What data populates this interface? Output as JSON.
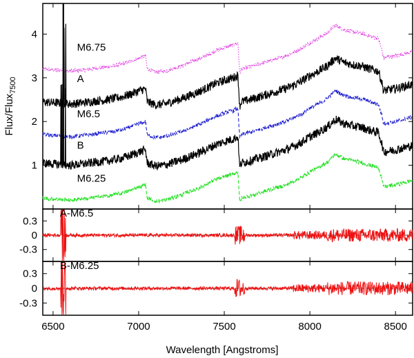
{
  "chart_data": {
    "type": "line",
    "xlabel": "Wavelength [Angstroms]",
    "ylabel": "Flux/Flux",
    "ylabel_subscript": "7500",
    "xlim": [
      6440,
      8600
    ],
    "x_ticks": [
      "6500",
      "7000",
      "7500",
      "8000",
      "8500"
    ],
    "x_tick_values": [
      6500,
      7000,
      7500,
      8000,
      8500
    ],
    "colors": {
      "magenta": "#e040e0",
      "black": "#000000",
      "blue": "#2020d0",
      "green": "#20e020",
      "red": "#ee1111"
    },
    "panels": [
      {
        "name": "main",
        "ylim": [
          0,
          4.7
        ],
        "y_ticks": [
          "1",
          "2",
          "3",
          "4"
        ],
        "y_tick_values": [
          1,
          2,
          3,
          4
        ],
        "series": [
          {
            "name": "M6.75",
            "label": "M6.75",
            "style": "dotted",
            "color": "#e040e0",
            "offset": 2.25,
            "label_at": [
              6640,
              3.62
            ]
          },
          {
            "name": "A",
            "label": "A",
            "style": "solid",
            "color": "#000000",
            "offset": 1.5,
            "label_at": [
              6640,
              2.9
            ]
          },
          {
            "name": "M6.5",
            "label": "M6.5",
            "style": "dashed",
            "color": "#2020d0",
            "offset": 0.75,
            "label_at": [
              6640,
              2.1
            ]
          },
          {
            "name": "B",
            "label": "B",
            "style": "solid",
            "color": "#000000",
            "offset": 0.1,
            "label_at": [
              6640,
              1.38
            ]
          },
          {
            "name": "M6.25",
            "label": "M6.25",
            "style": "dashed",
            "color": "#20e020",
            "offset": -0.7,
            "label_at": [
              6640,
              0.62
            ]
          }
        ],
        "base_spectrum_x": [
          6440,
          6500,
          6550,
          6600,
          6650,
          6700,
          6750,
          6800,
          6850,
          6900,
          6950,
          7000,
          7040,
          7050,
          7100,
          7150,
          7200,
          7250,
          7300,
          7350,
          7400,
          7450,
          7500,
          7550,
          7580,
          7590,
          7600,
          7650,
          7700,
          7750,
          7800,
          7850,
          7900,
          7950,
          8000,
          8050,
          8100,
          8150,
          8200,
          8250,
          8300,
          8350,
          8400,
          8420,
          8430,
          8450,
          8500,
          8550,
          8600
        ],
        "base_spectrum_y": [
          0.95,
          0.93,
          0.92,
          0.9,
          0.92,
          0.94,
          0.97,
          0.99,
          1.02,
          1.06,
          1.12,
          1.2,
          1.25,
          0.95,
          0.88,
          0.9,
          0.96,
          1.02,
          1.1,
          1.18,
          1.27,
          1.37,
          1.44,
          1.5,
          1.55,
          0.85,
          0.95,
          1.0,
          1.06,
          1.12,
          1.18,
          1.24,
          1.32,
          1.42,
          1.55,
          1.65,
          1.77,
          1.95,
          1.85,
          1.8,
          1.77,
          1.7,
          1.65,
          1.4,
          1.2,
          1.22,
          1.25,
          1.3,
          1.35
        ]
      },
      {
        "name": "A-M6.5",
        "label": "A-M6.5",
        "ylim": [
          -0.55,
          0.55
        ],
        "y_ticks": [
          "0.3",
          "0",
          "-0.3"
        ],
        "y_tick_values": [
          0.3,
          0,
          -0.3
        ],
        "color": "#ee1111",
        "label_at": [
          6540,
          0.42
        ]
      },
      {
        "name": "B-M6.25",
        "label": "B-M6.25",
        "ylim": [
          -0.55,
          0.55
        ],
        "y_ticks": [
          "0.3",
          "0",
          "-0.3"
        ],
        "y_tick_values": [
          0.3,
          0,
          -0.3
        ],
        "color": "#ee1111",
        "label_at": [
          6540,
          0.42
        ]
      }
    ]
  }
}
